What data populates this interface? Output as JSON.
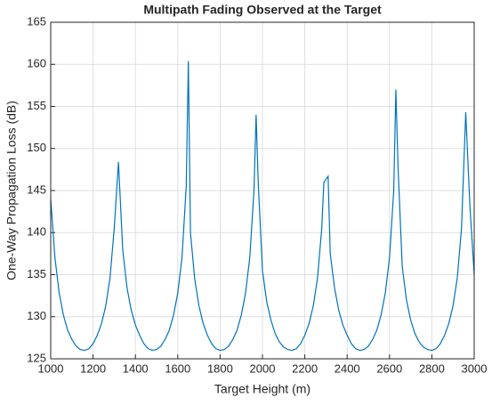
{
  "chart_data": {
    "type": "line",
    "title": "Multipath Fading Observed at the Target",
    "x_label": "Target Height (m)",
    "y_label": "One-Way Propagation Loss (dB)",
    "x": [
      1000,
      1020,
      1040,
      1060,
      1080,
      1100,
      1120,
      1140,
      1160,
      1180,
      1200,
      1220,
      1240,
      1260,
      1280,
      1300,
      1320,
      1340,
      1360,
      1380,
      1400,
      1420,
      1440,
      1460,
      1480,
      1500,
      1520,
      1540,
      1560,
      1580,
      1600,
      1620,
      1640,
      1650,
      1660,
      1680,
      1700,
      1720,
      1740,
      1760,
      1780,
      1800,
      1820,
      1840,
      1860,
      1880,
      1900,
      1920,
      1940,
      1960,
      1970,
      1980,
      2000,
      2020,
      2040,
      2060,
      2080,
      2100,
      2120,
      2140,
      2160,
      2180,
      2200,
      2220,
      2240,
      2260,
      2280,
      2290,
      2310,
      2320,
      2340,
      2360,
      2380,
      2400,
      2420,
      2440,
      2460,
      2480,
      2500,
      2520,
      2540,
      2560,
      2580,
      2600,
      2620,
      2630,
      2640,
      2660,
      2680,
      2700,
      2720,
      2740,
      2760,
      2780,
      2800,
      2820,
      2840,
      2860,
      2880,
      2900,
      2920,
      2940,
      2960,
      2980,
      3000
    ],
    "series": [
      {
        "color": "#0072bd",
        "values": [
          144,
          137.0,
          132.8,
          130.2,
          128.4,
          127.3,
          126.5,
          126.1,
          126.0,
          126.2,
          126.8,
          127.8,
          129.2,
          131.3,
          134.6,
          140.5,
          148.4,
          138.0,
          133.5,
          130.8,
          129.0,
          127.8,
          126.8,
          126.2,
          126.0,
          126.1,
          126.5,
          127.3,
          128.4,
          130.2,
          132.8,
          137.0,
          145.5,
          160.4,
          140.0,
          134.5,
          131.3,
          129.2,
          127.8,
          126.8,
          126.2,
          126.0,
          126.1,
          126.5,
          127.3,
          128.4,
          130.2,
          132.8,
          137.0,
          145.0,
          154.0,
          146.0,
          135.5,
          131.8,
          129.6,
          128.0,
          127.0,
          126.4,
          126.1,
          126.0,
          126.2,
          126.8,
          127.8,
          129.2,
          131.3,
          134.6,
          140.5,
          146.0,
          146.7,
          137.5,
          133.5,
          130.8,
          129.0,
          127.8,
          126.8,
          126.2,
          126.0,
          126.1,
          126.5,
          127.3,
          128.4,
          130.2,
          132.8,
          137.0,
          145.0,
          157.0,
          148.0,
          136.0,
          132.0,
          129.6,
          128.0,
          127.0,
          126.4,
          126.1,
          126.0,
          126.2,
          126.8,
          127.8,
          129.2,
          131.3,
          134.6,
          140.5,
          154.3,
          143.0,
          135.0
        ]
      }
    ],
    "xlim": [
      1000,
      3000
    ],
    "xticks": [
      1000,
      1200,
      1400,
      1600,
      1800,
      2000,
      2200,
      2400,
      2600,
      2800,
      3000
    ],
    "ylim": [
      125,
      165
    ],
    "yticks": [
      125,
      130,
      135,
      140,
      145,
      150,
      155,
      160,
      165
    ],
    "grid": true
  }
}
